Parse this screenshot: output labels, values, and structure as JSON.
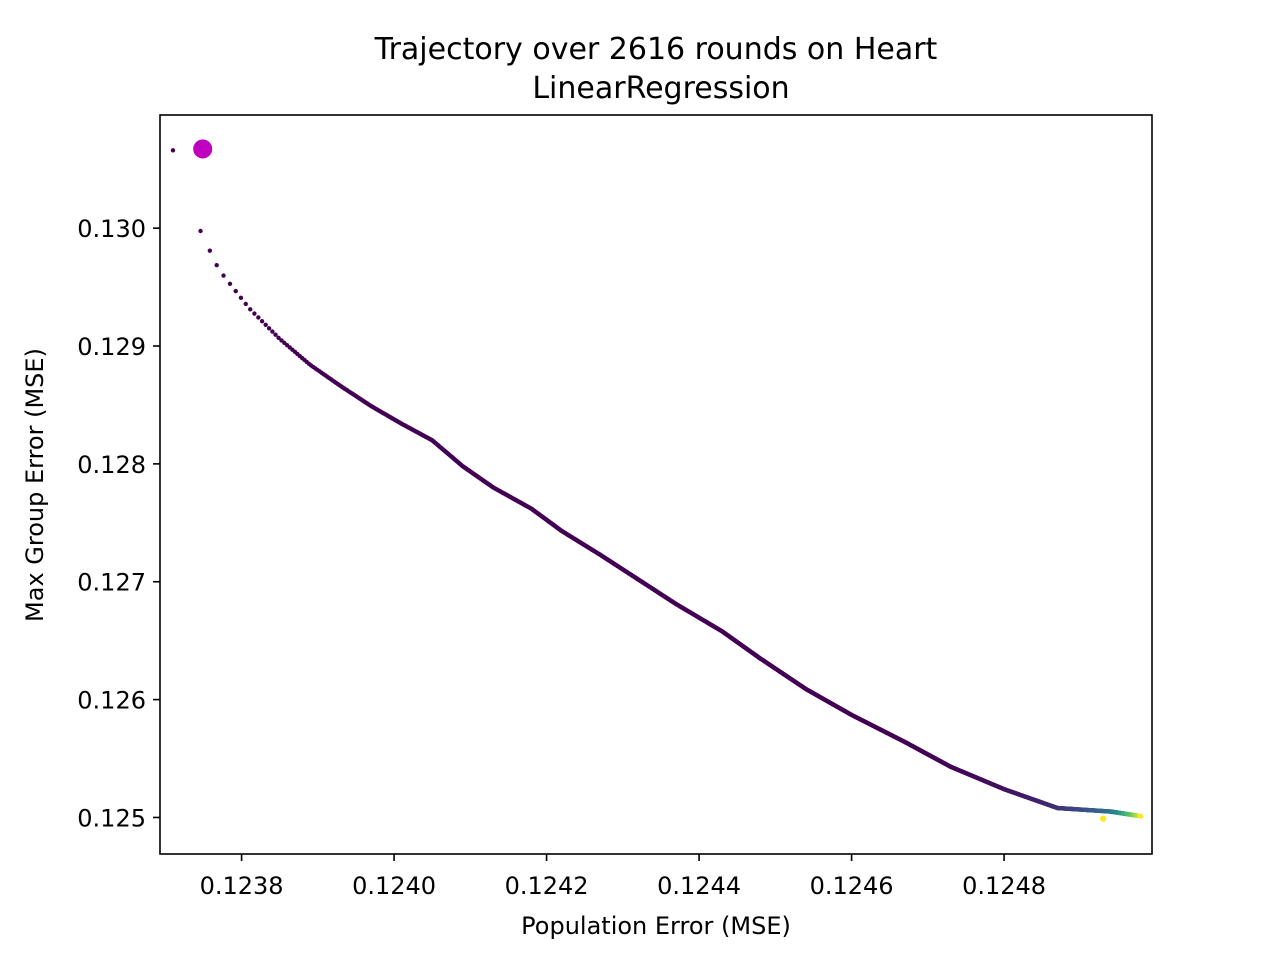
{
  "chart_data": {
    "type": "scatter",
    "title": "Trajectory over 2616 rounds on Heart",
    "subtitle": "LinearRegression",
    "xlabel": "Population Error (MSE)",
    "ylabel": "Max Group Error (MSE)",
    "xlim": [
      0.123693,
      0.124994
    ],
    "ylim": [
      0.12469,
      0.13096
    ],
    "xticks": [
      0.1238,
      0.124,
      0.1242,
      0.1244,
      0.1246,
      0.1248
    ],
    "xtick_labels": [
      "0.1238",
      "0.1240",
      "0.1242",
      "0.1244",
      "0.1246",
      "0.1248"
    ],
    "yticks": [
      0.125,
      0.126,
      0.127,
      0.128,
      0.129,
      0.13
    ],
    "ytick_labels": [
      "0.125",
      "0.126",
      "0.127",
      "0.128",
      "0.129",
      "0.130"
    ],
    "grid": false,
    "colormap": "viridis",
    "series": [
      {
        "values_x": [
          0.12371,
          0.12374,
          0.12377,
          0.12381,
          0.12385,
          0.12389,
          0.12393,
          0.12397,
          0.12401,
          0.12405,
          0.12409,
          0.12413,
          0.12418,
          0.12422,
          0.12427,
          0.12432,
          0.12437,
          0.12443,
          0.12448,
          0.12454,
          0.1246,
          0.12467,
          0.12473,
          0.1248,
          0.12487,
          0.12494,
          0.12498
        ],
        "values_y": [
          0.13066,
          0.13006,
          0.12965,
          0.12932,
          0.12906,
          0.12884,
          0.12866,
          0.12849,
          0.12834,
          0.1282,
          0.12798,
          0.1278,
          0.12762,
          0.12743,
          0.12723,
          0.12702,
          0.12681,
          0.12658,
          0.12635,
          0.12609,
          0.12587,
          0.12564,
          0.12543,
          0.12524,
          0.12508,
          0.12505,
          0.12501
        ]
      }
    ],
    "start_point": {
      "x": 0.123749,
      "y": 0.130672,
      "color": "#bf00bf"
    },
    "end_point": {
      "x": 0.12493,
      "y": 0.12499,
      "color": "#fde725"
    }
  }
}
